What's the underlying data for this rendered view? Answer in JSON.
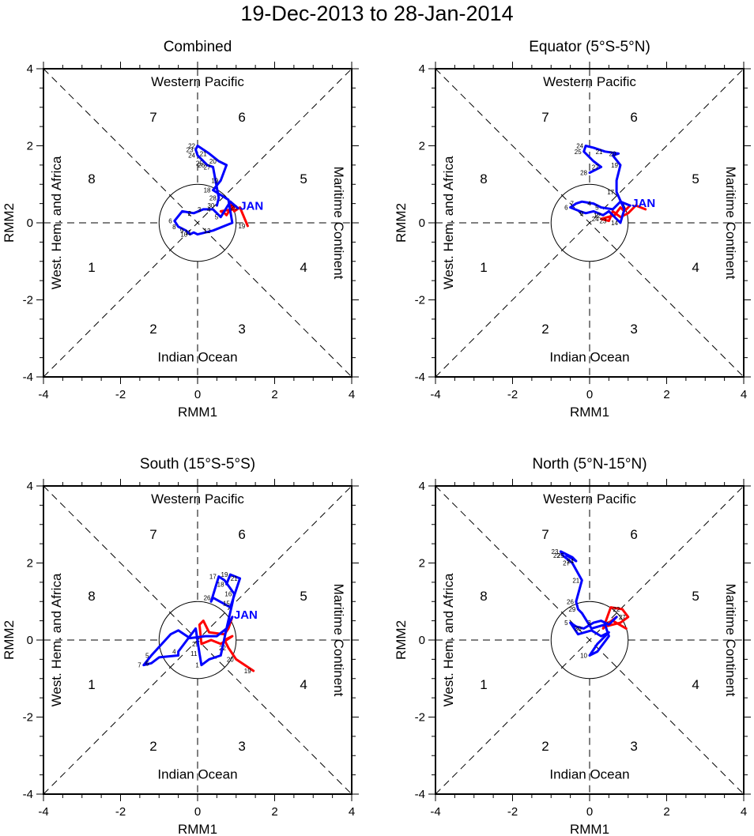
{
  "figure_title": "19-Dec-2013 to 28-Jan-2014",
  "colors": {
    "dec": "#ff0000",
    "jan": "#0000ff",
    "axis": "#000000"
  },
  "chart_data": [
    {
      "type": "line",
      "title": "Combined",
      "xlabel": "RMM1",
      "ylabel": "RMM2",
      "xlim": [
        -4,
        4
      ],
      "ylim": [
        -4,
        4
      ],
      "xticks": [
        "-4",
        "-2",
        "0",
        "2",
        "4"
      ],
      "yticks": [
        "-4",
        "-2",
        "0",
        "2",
        "4"
      ],
      "phase_labels": [
        "1",
        "2",
        "3",
        "4",
        "5",
        "6",
        "7",
        "8"
      ],
      "region_labels": {
        "top": "Western Pacific",
        "bottom": "Indian Ocean",
        "left": "West. Hem. and Africa",
        "right": "Maritime Continent"
      },
      "month_label": "JAN",
      "series": [
        {
          "name": "Dec",
          "color": "#ff0000",
          "x": [
            1.3,
            1.1,
            0.95,
            0.85,
            0.9,
            0.6,
            0.7,
            0.75,
            0.8,
            0.85,
            0.9,
            0.95,
            1.05
          ],
          "y": [
            -0.08,
            0.4,
            0.3,
            0.55,
            0.35,
            0.3,
            0.25,
            0.2,
            0.28,
            0.32,
            0.35,
            0.45,
            0.38
          ],
          "labels": [
            "19",
            "20",
            "",
            "",
            "",
            "",
            "",
            "",
            "",
            "",
            "",
            "",
            ""
          ]
        },
        {
          "name": "Jan",
          "color": "#0000ff",
          "x": [
            1.05,
            0.85,
            0.6,
            0.4,
            0.15,
            -0.1,
            -0.4,
            -0.6,
            -0.5,
            -0.3,
            -0.2,
            -0.1,
            0.0,
            0.4,
            0.9,
            0.8,
            0.4,
            0.6,
            0.75,
            0.55,
            0.3,
            0.0,
            -0.05,
            0.0,
            0.2,
            0.25,
            0.4,
            0.55,
            0.5
          ],
          "y": [
            0.38,
            0.55,
            0.15,
            0.35,
            0.35,
            0.25,
            0.3,
            0.05,
            -0.1,
            -0.2,
            -0.3,
            -0.25,
            -0.3,
            -0.2,
            0.0,
            0.6,
            0.85,
            1.1,
            1.5,
            1.6,
            1.8,
            2.0,
            1.9,
            1.75,
            1.55,
            1.5,
            1.45,
            0.65,
            0.45
          ],
          "labels": [
            "",
            "",
            "5",
            "4",
            "3",
            "2",
            "",
            "6",
            "8",
            "9",
            "10",
            "11",
            "",
            "12",
            "",
            "",
            "18",
            "19",
            "",
            "20",
            "21",
            "22",
            "23",
            "24",
            "25",
            "26",
            "27",
            "28",
            "30"
          ]
        }
      ]
    },
    {
      "type": "line",
      "title": "Equator (5°S-5°N)",
      "xlabel": "RMM1",
      "ylabel": "RMM2",
      "xlim": [
        -4,
        4
      ],
      "ylim": [
        -4,
        4
      ],
      "xticks": [
        "-4",
        "-2",
        "0",
        "2",
        "4"
      ],
      "yticks": [
        "-4",
        "-2",
        "0",
        "2",
        "4"
      ],
      "phase_labels": [
        "1",
        "2",
        "3",
        "4",
        "5",
        "6",
        "7",
        "8"
      ],
      "region_labels": {
        "top": "Western Pacific",
        "bottom": "Indian Ocean",
        "left": "West. Hem. and Africa",
        "right": "Maritime Continent"
      },
      "month_label": "JAN",
      "series": [
        {
          "name": "Dec",
          "color": "#ff0000",
          "x": [
            1.45,
            1.2,
            1.0,
            0.8,
            0.6,
            0.5,
            0.3,
            0.65,
            0.8,
            0.9,
            1.05
          ],
          "y": [
            0.35,
            0.45,
            0.25,
            0.15,
            0.3,
            0.05,
            0.1,
            0.2,
            0.4,
            0.3,
            0.45
          ],
          "labels": [
            "",
            "",
            "",
            "",
            "",
            "23",
            "24",
            "",
            "",
            "",
            ""
          ]
        },
        {
          "name": "Jan",
          "color": "#0000ff",
          "x": [
            1.05,
            0.8,
            0.6,
            0.3,
            0.1,
            -0.2,
            -0.35,
            -0.5,
            -0.25,
            -0.1,
            0.1,
            0.35,
            0.5,
            0.8,
            0.9,
            0.7,
            0.7,
            0.8,
            0.6,
            0.75,
            0.4,
            0.1,
            -0.1,
            -0.15,
            0.1,
            0.3,
            0.0
          ],
          "y": [
            0.45,
            0.55,
            0.35,
            0.4,
            0.5,
            0.55,
            0.5,
            0.4,
            0.3,
            0.25,
            0.3,
            0.2,
            0.3,
            0.0,
            0.35,
            0.8,
            1.1,
            1.5,
            1.75,
            1.8,
            1.85,
            1.95,
            2.0,
            1.85,
            1.6,
            1.45,
            1.3
          ],
          "labels": [
            "",
            "",
            "",
            "5",
            "4",
            "",
            "7",
            "6",
            "",
            "9",
            "",
            "12",
            "",
            "14",
            "",
            "17",
            "",
            "19",
            "",
            "20",
            "21",
            "",
            "24",
            "25",
            "",
            "27",
            "28"
          ]
        }
      ]
    },
    {
      "type": "line",
      "title": "South (15°S-5°S)",
      "xlabel": "RMM1",
      "ylabel": "RMM2",
      "xlim": [
        -4,
        4
      ],
      "ylim": [
        -4,
        4
      ],
      "xticks": [
        "-4",
        "-2",
        "0",
        "2",
        "4"
      ],
      "yticks": [
        "-4",
        "-2",
        "0",
        "2",
        "4"
      ],
      "phase_labels": [
        "1",
        "2",
        "3",
        "4",
        "5",
        "6",
        "7",
        "8"
      ],
      "region_labels": {
        "top": "Western Pacific",
        "bottom": "Indian Ocean",
        "left": "West. Hem. and Africa",
        "right": "Maritime Continent"
      },
      "month_label": "JAN",
      "series": [
        {
          "name": "Dec",
          "color": "#ff0000",
          "x": [
            1.45,
            1.0,
            0.8,
            0.7,
            0.9,
            0.6,
            0.35,
            0.1,
            0.05,
            0.15,
            0.3,
            0.7,
            0.8,
            0.9
          ],
          "y": [
            -0.8,
            -0.5,
            -0.2,
            0.0,
            0.1,
            -0.1,
            0.0,
            -0.1,
            0.4,
            0.5,
            0.2,
            0.15,
            0.3,
            0.6
          ],
          "labels": [
            "19",
            "20",
            "22",
            "",
            "",
            "",
            "",
            "29",
            "",
            "",
            "",
            "",
            "",
            ""
          ]
        },
        {
          "name": "Jan",
          "color": "#0000ff",
          "x": [
            0.9,
            0.75,
            0.5,
            0.2,
            -0.2,
            -0.5,
            -0.7,
            -1.2,
            -1.4,
            -1.2,
            -1.0,
            -0.5,
            -0.5,
            -0.05,
            0.05,
            0.1,
            0.3,
            0.6,
            0.75,
            0.9,
            0.95,
            0.7,
            0.55,
            0.35,
            0.4,
            0.85,
            1.1,
            0.85,
            0.75
          ],
          "y": [
            0.6,
            0.3,
            0.1,
            0.1,
            0.05,
            0.25,
            0.15,
            -0.4,
            -0.65,
            -0.6,
            -0.45,
            -0.4,
            -0.3,
            0.3,
            -0.35,
            -0.65,
            -0.5,
            -0.4,
            0.3,
            0.95,
            1.2,
            1.55,
            1.65,
            1.0,
            1.1,
            0.85,
            1.6,
            1.7,
            1.45
          ],
          "labels": [
            "",
            "",
            "",
            "",
            "",
            "",
            "",
            "5",
            "7",
            "6",
            "",
            "",
            "4",
            "",
            "11",
            "1",
            "",
            "",
            "",
            "15",
            "16",
            "",
            "17",
            "",
            "26",
            "",
            "21",
            "19",
            "18"
          ]
        }
      ]
    },
    {
      "type": "line",
      "title": "North (5°N-15°N)",
      "xlabel": "RMM1",
      "ylabel": "RMM2",
      "xlim": [
        -4,
        4
      ],
      "ylim": [
        -4,
        4
      ],
      "xticks": [
        "-4",
        "-2",
        "0",
        "2",
        "4"
      ],
      "yticks": [
        "-4",
        "-2",
        "0",
        "2",
        "4"
      ],
      "phase_labels": [
        "1",
        "2",
        "3",
        "4",
        "5",
        "6",
        "7",
        "8"
      ],
      "region_labels": {
        "top": "Western Pacific",
        "bottom": "Indian Ocean",
        "left": "West. Hem. and Africa",
        "right": "Maritime Continent"
      },
      "month_label": "",
      "series": [
        {
          "name": "Dec",
          "color": "#ff0000",
          "x": [
            0.95,
            0.6,
            0.4,
            0.8,
            1.0,
            0.85,
            0.55,
            0.35,
            0.5,
            0.7
          ],
          "y": [
            0.3,
            0.5,
            0.35,
            0.45,
            0.6,
            0.8,
            0.85,
            0.3,
            0.45,
            0.6
          ],
          "labels": [
            "",
            "",
            "",
            "",
            "27",
            "22",
            "",
            "",
            "",
            ""
          ]
        },
        {
          "name": "Jan",
          "color": "#0000ff",
          "x": [
            0.7,
            0.5,
            0.3,
            0.1,
            -0.15,
            -0.35,
            -0.5,
            -0.3,
            0.05,
            0.3,
            0.5,
            0.2,
            0.0,
            0.2,
            0.5,
            0.4,
            0.05,
            -0.2,
            -0.3,
            -0.35,
            -0.2,
            -0.45,
            -0.7,
            -0.75,
            -0.45,
            -0.35,
            -0.6
          ],
          "y": [
            0.6,
            0.4,
            0.5,
            0.45,
            0.3,
            0.35,
            0.45,
            0.15,
            0.25,
            0.1,
            0.2,
            -0.1,
            -0.4,
            -0.3,
            0.1,
            0.4,
            0.3,
            0.7,
            0.8,
            1.0,
            1.55,
            2.0,
            2.2,
            2.3,
            2.15,
            2.05,
            2.2
          ],
          "labels": [
            "",
            "",
            "",
            "3",
            "30",
            "",
            "5",
            "",
            "",
            "",
            "",
            "",
            "10",
            "",
            "",
            "",
            "",
            "",
            "29",
            "26",
            "21",
            "27",
            "22",
            "23",
            "",
            "24",
            "25"
          ]
        }
      ]
    }
  ]
}
